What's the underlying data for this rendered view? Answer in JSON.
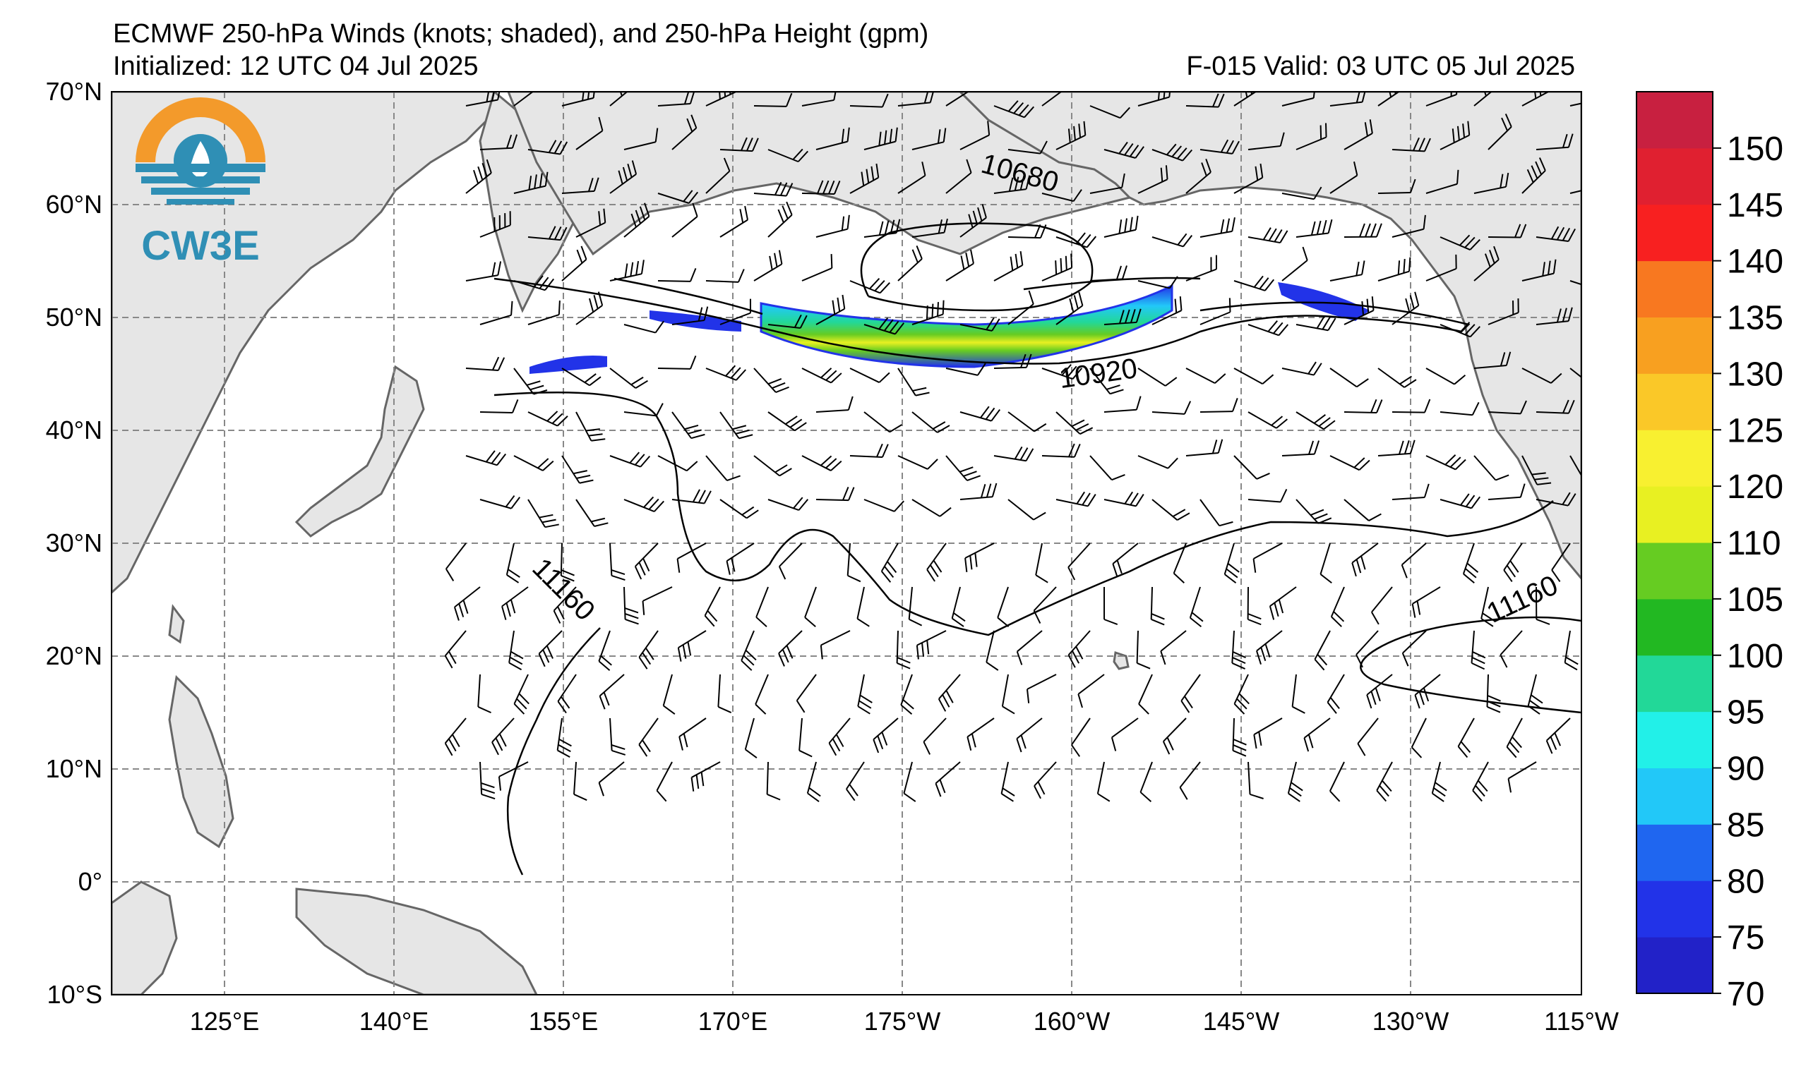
{
  "header": {
    "title": "ECMWF 250-hPa Winds (knots; shaded), and 250-hPa Height (gpm)",
    "initialized": "Initialized: 12 UTC 04 Jul 2025",
    "valid": "F-015  Valid: 03 UTC 05 Jul 2025"
  },
  "logo": {
    "text": "CW3E",
    "colors": {
      "sun": "#f39a2b",
      "sea": "#2f8fb5"
    }
  },
  "map": {
    "projection": "equirectangular",
    "lon_range": [
      115,
      245
    ],
    "lat_range": [
      -10,
      70
    ],
    "lat_labels": [
      "70°N",
      "60°N",
      "50°N",
      "40°N",
      "30°N",
      "20°N",
      "10°N",
      "0°",
      "10°S"
    ],
    "lon_labels": [
      "125°E",
      "140°E",
      "155°E",
      "170°E",
      "175°W",
      "160°W",
      "145°W",
      "130°W",
      "115°W"
    ],
    "land_color": "#e6e6e6",
    "coast_color": "#666666",
    "grid_style": "dashed gray",
    "height_contour_labels": [
      "10680",
      "10920",
      "11160",
      "11160"
    ]
  },
  "colorbar": {
    "ticks": [
      "70",
      "75",
      "80",
      "85",
      "90",
      "95",
      "100",
      "105",
      "110",
      "120",
      "125",
      "130",
      "135",
      "140",
      "145",
      "150"
    ],
    "colors": [
      "#2222c8",
      "#2233e8",
      "#1f66f0",
      "#22c8f8",
      "#22f0e8",
      "#22d898",
      "#22b822",
      "#66cc22",
      "#e8f022",
      "#f8f030",
      "#fac828",
      "#f8a020",
      "#f87820",
      "#f82020",
      "#e02030",
      "#c82040",
      "#a01e55",
      "#881e88",
      "#6f2090",
      "#7a229e"
    ]
  }
}
